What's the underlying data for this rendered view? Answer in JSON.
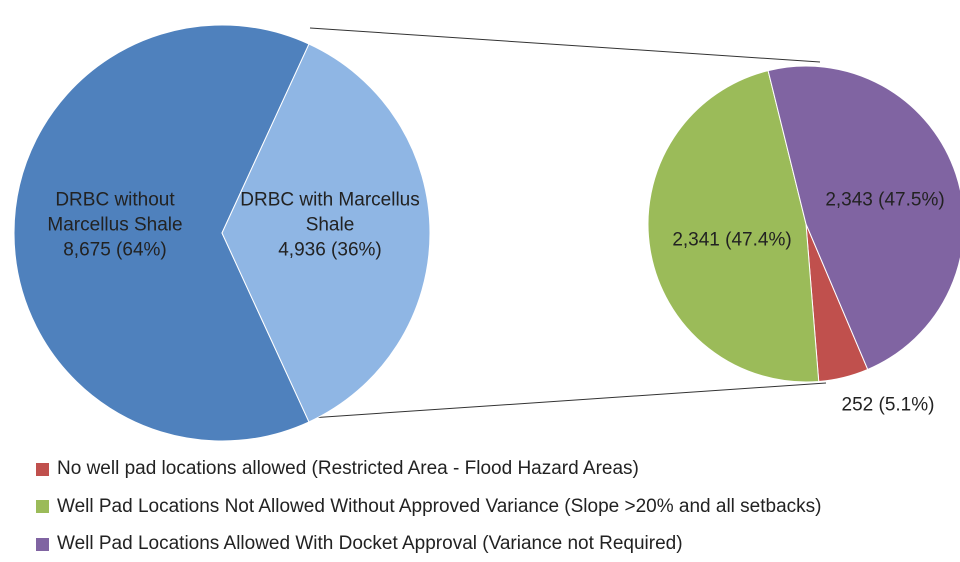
{
  "chart_data": [
    {
      "type": "pie",
      "categories": [
        "DRBC without Marcellus Shale",
        "DRBC with Marcellus Shale"
      ],
      "values": [
        8675,
        4936
      ],
      "value_labels": [
        "8,675 (64%)",
        "4,936 (36%)"
      ],
      "colors": [
        "#4f81bd",
        "#8fb6e4"
      ]
    },
    {
      "type": "pie",
      "categories": [
        "No well pad locations allowed (Restricted Area - Flood Hazard Areas)",
        "Well Pad Locations Not Allowed Without Approved Variance (Slope >20% and all setbacks)",
        "Well Pad Locations Allowed With Docket Approval (Variance not Required)"
      ],
      "values": [
        252,
        2341,
        2343
      ],
      "value_labels": [
        "252 (5.1%)",
        "2,341 (47.4%)",
        "2,343 (47.5%)"
      ],
      "colors": [
        "#c0504d",
        "#9bbb59",
        "#8064a2"
      ],
      "legend": "bottom-left"
    }
  ]
}
